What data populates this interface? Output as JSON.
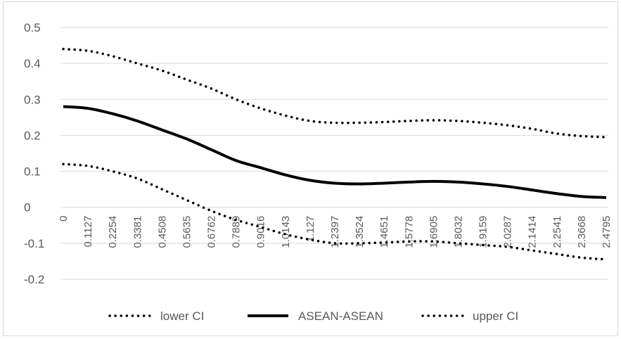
{
  "chart_data": {
    "type": "line",
    "title": "",
    "xlabel": "",
    "ylabel": "",
    "ylim": [
      -0.2,
      0.5
    ],
    "yticks": [
      "0.5",
      "0.4",
      "0.3",
      "0.2",
      "0.1",
      "0",
      "-0.1",
      "-0.2"
    ],
    "grid": true,
    "legend_position": "bottom",
    "x": [
      "0",
      "0.1127",
      "0.2254",
      "0.3381",
      "0.4508",
      "0.5635",
      "0.6762",
      "0.7889",
      "0.9016",
      "1.0143",
      "1.127",
      "1.2397",
      "1.3524",
      "1.4651",
      "1.5778",
      "1.6905",
      "1.8032",
      "1.9159",
      "2.0287",
      "2.1414",
      "2.2541",
      "2.3668",
      "2.4795"
    ],
    "series": [
      {
        "name": "lower CI",
        "style": "dotted",
        "color": "#000000",
        "values": [
          0.12,
          0.115,
          0.1,
          0.08,
          0.05,
          0.02,
          -0.01,
          -0.035,
          -0.055,
          -0.075,
          -0.09,
          -0.1,
          -0.1,
          -0.098,
          -0.095,
          -0.095,
          -0.1,
          -0.105,
          -0.11,
          -0.12,
          -0.13,
          -0.14,
          -0.145
        ]
      },
      {
        "name": "ASEAN-ASEAN",
        "style": "solid",
        "color": "#000000",
        "values": [
          0.28,
          0.275,
          0.26,
          0.24,
          0.215,
          0.19,
          0.16,
          0.13,
          0.11,
          0.09,
          0.075,
          0.067,
          0.065,
          0.067,
          0.07,
          0.072,
          0.07,
          0.065,
          0.058,
          0.048,
          0.038,
          0.03,
          0.027
        ]
      },
      {
        "name": "upper CI",
        "style": "dotted",
        "color": "#000000",
        "values": [
          0.44,
          0.435,
          0.42,
          0.4,
          0.38,
          0.355,
          0.33,
          0.3,
          0.275,
          0.255,
          0.24,
          0.235,
          0.235,
          0.237,
          0.24,
          0.242,
          0.24,
          0.235,
          0.228,
          0.218,
          0.205,
          0.198,
          0.195
        ]
      }
    ]
  }
}
